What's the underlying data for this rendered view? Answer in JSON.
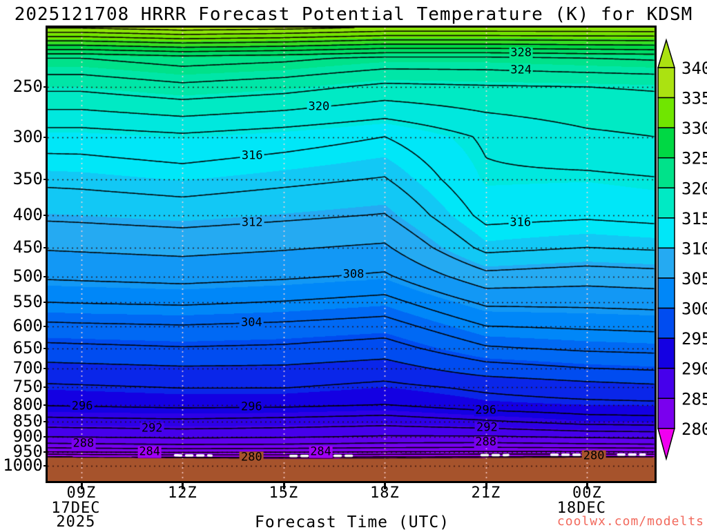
{
  "title": "2025121708 HRRR Forecast Potential Temperature (K) for KDSM",
  "x_axis": {
    "label": "Forecast Time (UTC)",
    "ticks": [
      {
        "label": "09Z",
        "hour": 9,
        "sub": [
          "17DEC",
          "2025"
        ]
      },
      {
        "label": "12Z",
        "hour": 12,
        "sub": []
      },
      {
        "label": "15Z",
        "hour": 15,
        "sub": []
      },
      {
        "label": "18Z",
        "hour": 18,
        "sub": []
      },
      {
        "label": "21Z",
        "hour": 21,
        "sub": []
      },
      {
        "label": "00Z",
        "hour": 24,
        "sub": [
          "18DEC"
        ]
      }
    ]
  },
  "y_axis": {
    "tick_labels": [
      250,
      300,
      350,
      400,
      450,
      500,
      550,
      600,
      650,
      700,
      750,
      800,
      850,
      900,
      950,
      1000
    ]
  },
  "colorbar": {
    "tick_labels": [
      340,
      335,
      330,
      325,
      320,
      315,
      310,
      305,
      300,
      295,
      290,
      285,
      280
    ]
  },
  "watermark": {
    "text": "coolwx.com/modelts",
    "color": "#F2695C"
  },
  "chart_data": {
    "type": "heatmap",
    "title": "2025121708 HRRR Forecast Potential Temperature (K) for KDSM",
    "xlabel": "Forecast Time (UTC)",
    "x_hours_utc": [
      8,
      9,
      12,
      15,
      18,
      21,
      24,
      26
    ],
    "x_range_hours": [
      8,
      26
    ],
    "pressure_levels_hpa": [
      200,
      225,
      250,
      300,
      350,
      400,
      450,
      500,
      550,
      600,
      650,
      700,
      750,
      800,
      850,
      900,
      925,
      950,
      965,
      978
    ],
    "pressure_range_hpa": [
      201,
      1057
    ],
    "theta_K": [
      [
        341.0,
        341.0,
        342.0,
        341.5,
        340.5,
        340.5,
        340.5,
        340.5
      ],
      [
        326.0,
        326.0,
        327.0,
        326.5,
        325.5,
        325.5,
        326.0,
        326.3
      ],
      [
        322.5,
        322.5,
        323.5,
        322.8,
        321.5,
        321.8,
        322.0,
        322.2
      ],
      [
        317.0,
        317.0,
        317.6,
        316.9,
        316.0,
        318.3,
        319.6,
        320.0
      ],
      [
        314.5,
        314.6,
        315.1,
        314.5,
        313.9,
        317.7,
        317.6,
        317.9
      ],
      [
        312.4,
        312.5,
        312.9,
        312.4,
        311.9,
        316.6,
        316.3,
        316.6
      ],
      [
        310.2,
        310.3,
        310.6,
        310.2,
        309.7,
        314.6,
        314.0,
        314.3
      ],
      [
        308.3,
        308.4,
        308.7,
        308.3,
        307.7,
        311.4,
        310.9,
        311.2
      ],
      [
        306.0,
        306.1,
        306.3,
        305.9,
        305.3,
        308.4,
        308.5,
        308.7
      ],
      [
        303.6,
        303.7,
        303.9,
        303.6,
        303.1,
        306.0,
        306.3,
        306.5
      ],
      [
        301.5,
        301.6,
        301.9,
        301.7,
        301.1,
        303.8,
        304.4,
        304.6
      ],
      [
        299.4,
        299.5,
        299.8,
        299.7,
        299.1,
        301.2,
        302.0,
        302.3
      ],
      [
        297.7,
        297.8,
        298.1,
        298.1,
        297.5,
        298.4,
        299.2,
        299.6
      ],
      [
        296.2,
        296.3,
        296.6,
        296.5,
        296.0,
        297.2,
        297.5,
        297.6
      ],
      [
        293.3,
        293.4,
        293.6,
        293.3,
        292.9,
        293.8,
        295.0,
        295.2
      ],
      [
        290.0,
        290.1,
        290.4,
        290.2,
        289.8,
        289.8,
        290.3,
        290.5
      ],
      [
        287.7,
        287.8,
        288.1,
        288.0,
        287.6,
        287.5,
        287.8,
        288.0
      ],
      [
        284.2,
        284.4,
        284.7,
        284.5,
        284.2,
        284.0,
        284.1,
        284.3
      ],
      [
        280.7,
        281.0,
        281.3,
        281.3,
        280.9,
        280.7,
        280.6,
        280.7
      ],
      [
        277.5,
        277.8,
        278.1,
        278.2,
        277.8,
        277.6,
        277.4,
        277.5
      ]
    ],
    "surface_pressure_hpa": [
      968,
      969,
      971,
      973,
      972,
      970,
      968.5,
      968
    ],
    "contour_interval_K": 2,
    "contour_level_min_K": 278,
    "contour_level_max_K": 342,
    "contour_labels": [
      {
        "level": 328,
        "x_frac": 0.78
      },
      {
        "level": 324,
        "x_frac": 0.78
      },
      {
        "level": 320,
        "x_frac": 0.447
      },
      {
        "level": 316,
        "x_frac": 0.337
      },
      {
        "level": 316,
        "x_frac": 0.779
      },
      {
        "level": 312,
        "x_frac": 0.337
      },
      {
        "level": 308,
        "x_frac": 0.504
      },
      {
        "level": 304,
        "x_frac": 0.336
      },
      {
        "level": 296,
        "x_frac": 0.057
      },
      {
        "level": 296,
        "x_frac": 0.336
      },
      {
        "level": 296,
        "x_frac": 0.722
      },
      {
        "level": 292,
        "x_frac": 0.172
      },
      {
        "level": 292,
        "x_frac": 0.724
      },
      {
        "level": 288,
        "x_frac": 0.059
      },
      {
        "level": 288,
        "x_frac": 0.722
      },
      {
        "level": 284,
        "x_frac": 0.168
      },
      {
        "level": 284,
        "x_frac": 0.45
      },
      {
        "level": 280,
        "x_frac": 0.336
      },
      {
        "level": 280,
        "x_frac": 0.9
      }
    ],
    "fill_band_step_K": 2.5,
    "fill_band_start_K": 275,
    "fill_colors": [
      "#F000F0",
      "#A000F5",
      "#7A00EE",
      "#4600EB",
      "#1400E2",
      "#004CF0",
      "#0087F8",
      "#25AAF2",
      "#00E7F8",
      "#00EAC4",
      "#00E28A",
      "#00D844",
      "#70E600",
      "#ABE211"
    ],
    "ground_color": "#A6532C",
    "surface_white_dashes_x_frac": [
      [
        0.21,
        0.27
      ],
      [
        0.4,
        0.51
      ],
      [
        0.715,
        0.76
      ],
      [
        0.83,
        0.92
      ],
      [
        0.94,
        0.985
      ]
    ],
    "legend_position": "right",
    "grid": "dotted"
  }
}
